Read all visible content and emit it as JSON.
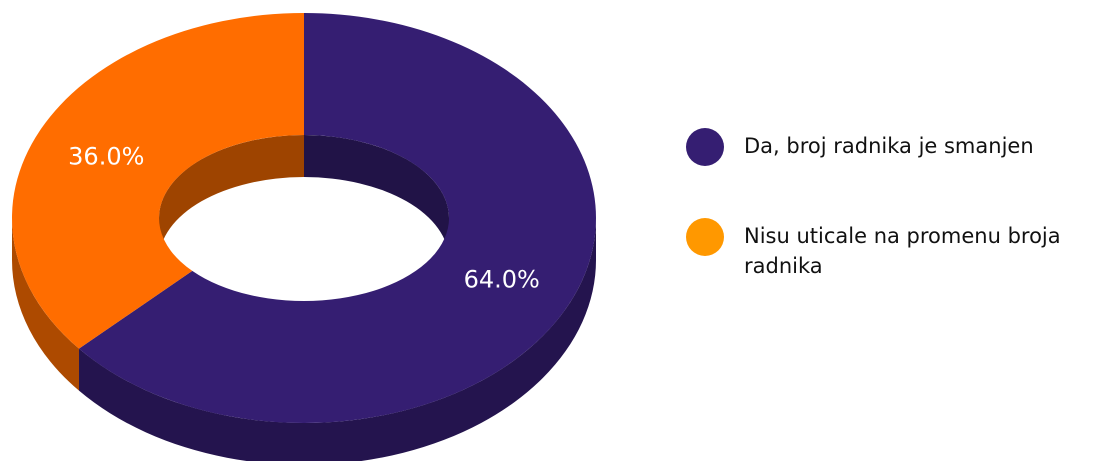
{
  "chart_data": {
    "type": "pie",
    "variant": "donut-3d",
    "title": "",
    "slices": [
      {
        "label": "Da, broj radnika je smanjen",
        "value": 64.0,
        "value_label": "64.0%",
        "color": "#351e72"
      },
      {
        "label": "Nisu uticale na promenu broja radnika",
        "value": 36.0,
        "value_label": "36.0%",
        "color": "#ff6d00"
      }
    ],
    "legend": {
      "position": "right",
      "items": [
        {
          "label": "Da, broj radnika je smanjen",
          "color": "#351e72"
        },
        {
          "label": "Nisu uticale na promenu broja radnika",
          "color": "#ff9800"
        }
      ]
    },
    "start_angle": "top",
    "direction": "clockwise"
  }
}
